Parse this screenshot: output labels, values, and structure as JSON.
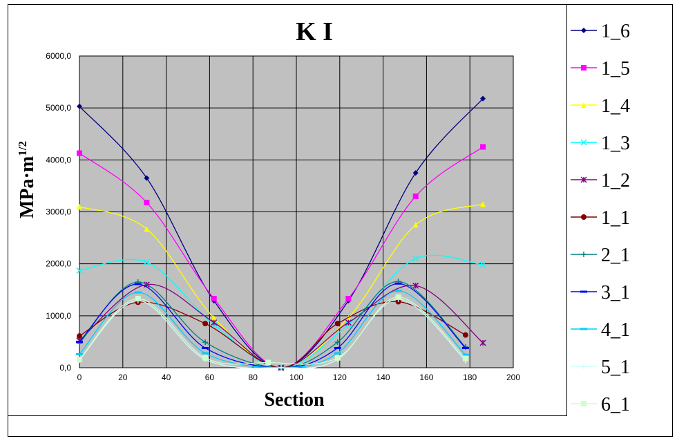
{
  "chart_data": {
    "type": "line",
    "title": "K I",
    "xlabel": "Section",
    "ylabel": "MPa·m",
    "ylabel_sup": "1/2",
    "xlim": [
      0,
      200
    ],
    "ylim": [
      0,
      6000
    ],
    "x_ticks": [
      "0",
      "20",
      "40",
      "60",
      "80",
      "100",
      "120",
      "140",
      "160",
      "180",
      "200"
    ],
    "y_ticks": [
      "0,0",
      "1000,0",
      "2000,0",
      "3000,0",
      "4000,0",
      "5000,0",
      "6000,0"
    ],
    "grid": true,
    "legend_position": "right",
    "plot_background": "#c0c0c0",
    "series": [
      {
        "name": "1_6",
        "color": "#000080",
        "marker": "diamond",
        "x": [
          0,
          31,
          62,
          93,
          124,
          155,
          186
        ],
        "y": [
          5030,
          3650,
          1290,
          0,
          1290,
          3750,
          5180
        ]
      },
      {
        "name": "1_5",
        "color": "#ff00ff",
        "marker": "square",
        "x": [
          0,
          31,
          62,
          93,
          124,
          155,
          186
        ],
        "y": [
          4130,
          3180,
          1330,
          0,
          1330,
          3300,
          4250
        ]
      },
      {
        "name": "1_4",
        "color": "#ffff00",
        "marker": "triangle",
        "x": [
          0,
          31,
          62,
          93,
          124,
          155,
          186
        ],
        "y": [
          3100,
          2670,
          960,
          0,
          960,
          2750,
          3150
        ]
      },
      {
        "name": "1_3",
        "color": "#00ffff",
        "marker": "x",
        "x": [
          0,
          31,
          62,
          93,
          124,
          155,
          186
        ],
        "y": [
          1870,
          2030,
          830,
          0,
          830,
          2100,
          1980
        ]
      },
      {
        "name": "1_2",
        "color": "#800080",
        "marker": "star",
        "x": [
          0,
          31,
          62,
          93,
          124,
          155,
          186
        ],
        "y": [
          520,
          1600,
          870,
          0,
          870,
          1580,
          480
        ]
      },
      {
        "name": "1_1",
        "color": "#800000",
        "marker": "circle",
        "x": [
          0,
          27,
          58,
          93,
          119,
          147,
          178
        ],
        "y": [
          610,
          1260,
          850,
          0,
          850,
          1270,
          630
        ]
      },
      {
        "name": "2_1",
        "color": "#008080",
        "marker": "plus",
        "x": [
          0,
          27,
          58,
          93,
          119,
          147,
          178
        ],
        "y": [
          470,
          1650,
          490,
          0,
          490,
          1660,
          400
        ]
      },
      {
        "name": "3_1",
        "color": "#0000ff",
        "marker": "dash",
        "x": [
          0,
          27,
          58,
          93,
          119,
          147,
          178
        ],
        "y": [
          500,
          1610,
          380,
          0,
          380,
          1620,
          380
        ]
      },
      {
        "name": "4_1",
        "color": "#00ccff",
        "marker": "dash",
        "x": [
          0,
          27,
          58,
          93,
          119,
          147,
          178
        ],
        "y": [
          260,
          1450,
          280,
          0,
          280,
          1480,
          250
        ]
      },
      {
        "name": "5_1",
        "color": "#ccffff",
        "marker": "plus",
        "x": [
          0,
          27,
          58,
          93,
          119,
          147,
          178
        ],
        "y": [
          150,
          1290,
          160,
          0,
          160,
          1320,
          140
        ]
      },
      {
        "name": "6_1",
        "color": "#ccffcc",
        "marker": "square",
        "x": [
          0,
          27,
          58,
          87,
          119,
          147,
          178
        ],
        "y": [
          160,
          1330,
          190,
          100,
          190,
          1360,
          180
        ]
      }
    ]
  }
}
